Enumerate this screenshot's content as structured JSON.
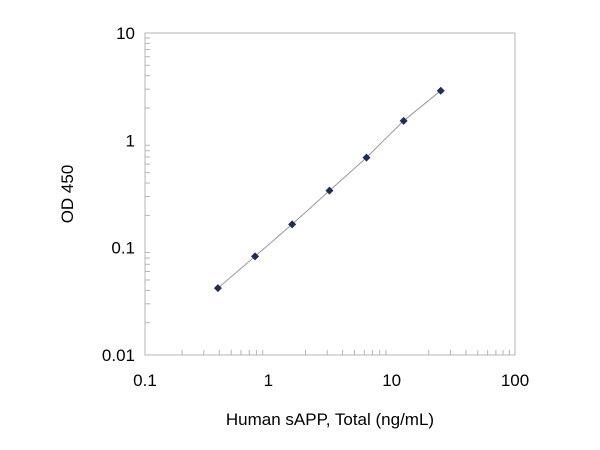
{
  "chart_data": {
    "type": "scatter",
    "xscale": "log",
    "yscale": "log",
    "xlim": [
      0.1,
      100
    ],
    "ylim": [
      0.01,
      10
    ],
    "xlabel": "Human sAPP, Total (ng/mL)",
    "ylabel": "OD 450",
    "xticks": [
      "0.1",
      "1",
      "10",
      "100"
    ],
    "yticks": [
      "10",
      "1",
      "0.1",
      "0.01"
    ],
    "grid": false,
    "legend": "none",
    "series": [
      {
        "x": [
          0.39,
          0.78,
          1.56,
          3.13,
          6.25,
          12.5,
          25
        ],
        "y": [
          0.042,
          0.083,
          0.165,
          0.34,
          0.69,
          1.52,
          2.9
        ],
        "marker": "diamond",
        "color": "#1f2d5c",
        "trendline": true,
        "trendline_color": "#9a9a9a"
      }
    ]
  }
}
